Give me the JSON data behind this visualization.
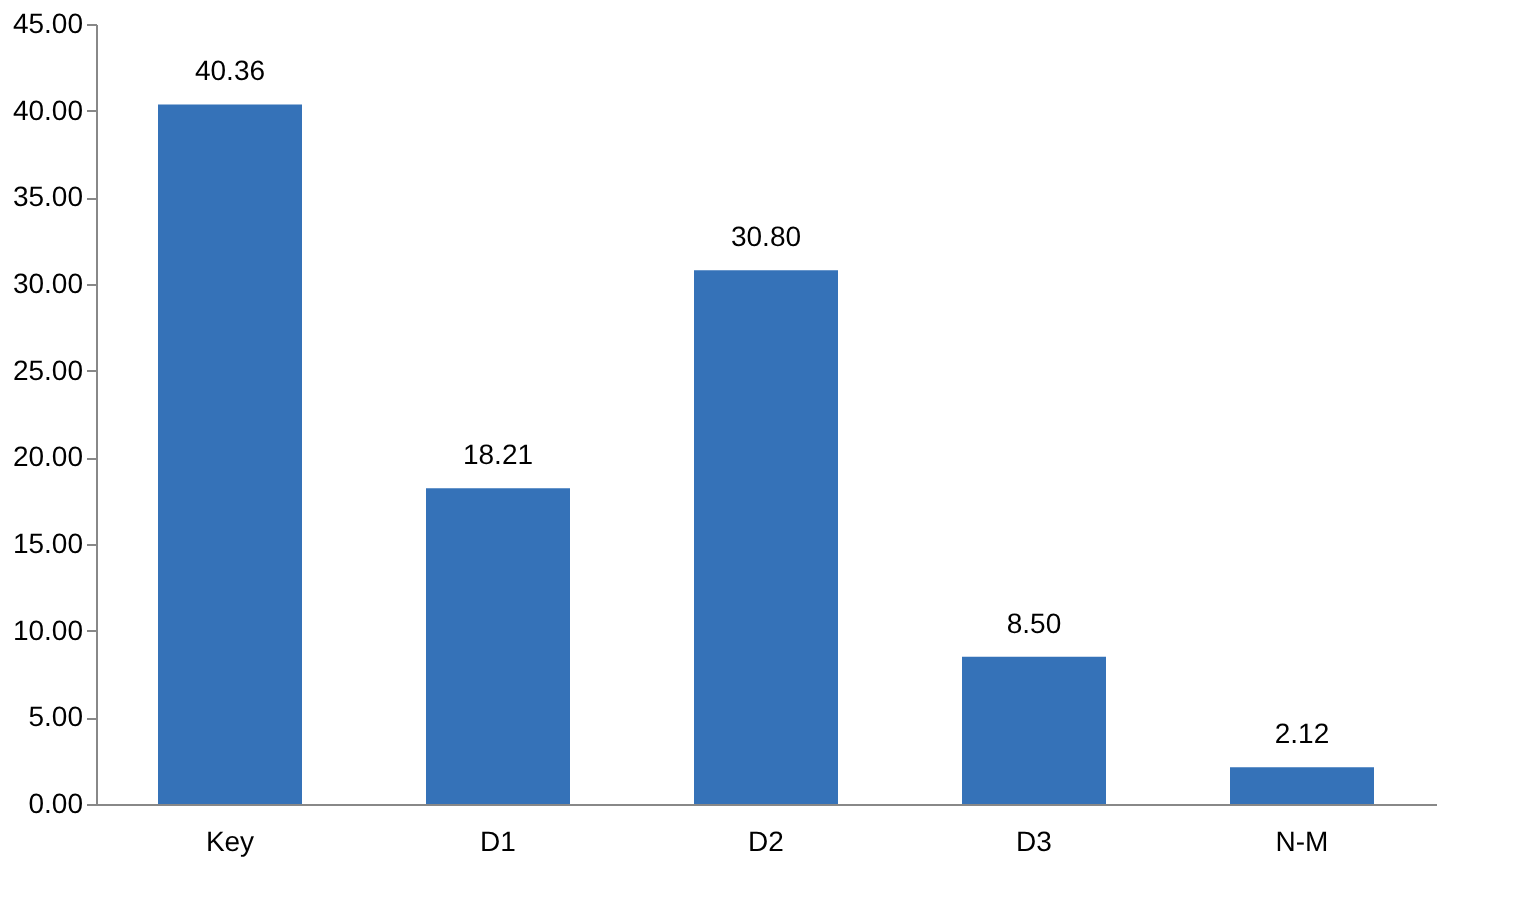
{
  "chart_data": {
    "type": "bar",
    "categories": [
      "Key",
      "D1",
      "D2",
      "D3",
      "N-M"
    ],
    "values": [
      40.36,
      18.21,
      30.8,
      8.5,
      2.12
    ],
    "value_labels": [
      "40.36",
      "18.21",
      "30.80",
      "8.50",
      "2.12"
    ],
    "color": "#3572b8",
    "ylim": [
      0,
      45
    ],
    "yticks": [
      {
        "value": 0,
        "label": "0.00"
      },
      {
        "value": 5,
        "label": "5.00"
      },
      {
        "value": 10,
        "label": "10.00"
      },
      {
        "value": 15,
        "label": "15.00"
      },
      {
        "value": 20,
        "label": "20.00"
      },
      {
        "value": 25,
        "label": "25.00"
      },
      {
        "value": 30,
        "label": "30.00"
      },
      {
        "value": 35,
        "label": "35.00"
      },
      {
        "value": 40,
        "label": "40.00"
      },
      {
        "value": 45,
        "label": "45.00"
      }
    ],
    "grid": false
  }
}
